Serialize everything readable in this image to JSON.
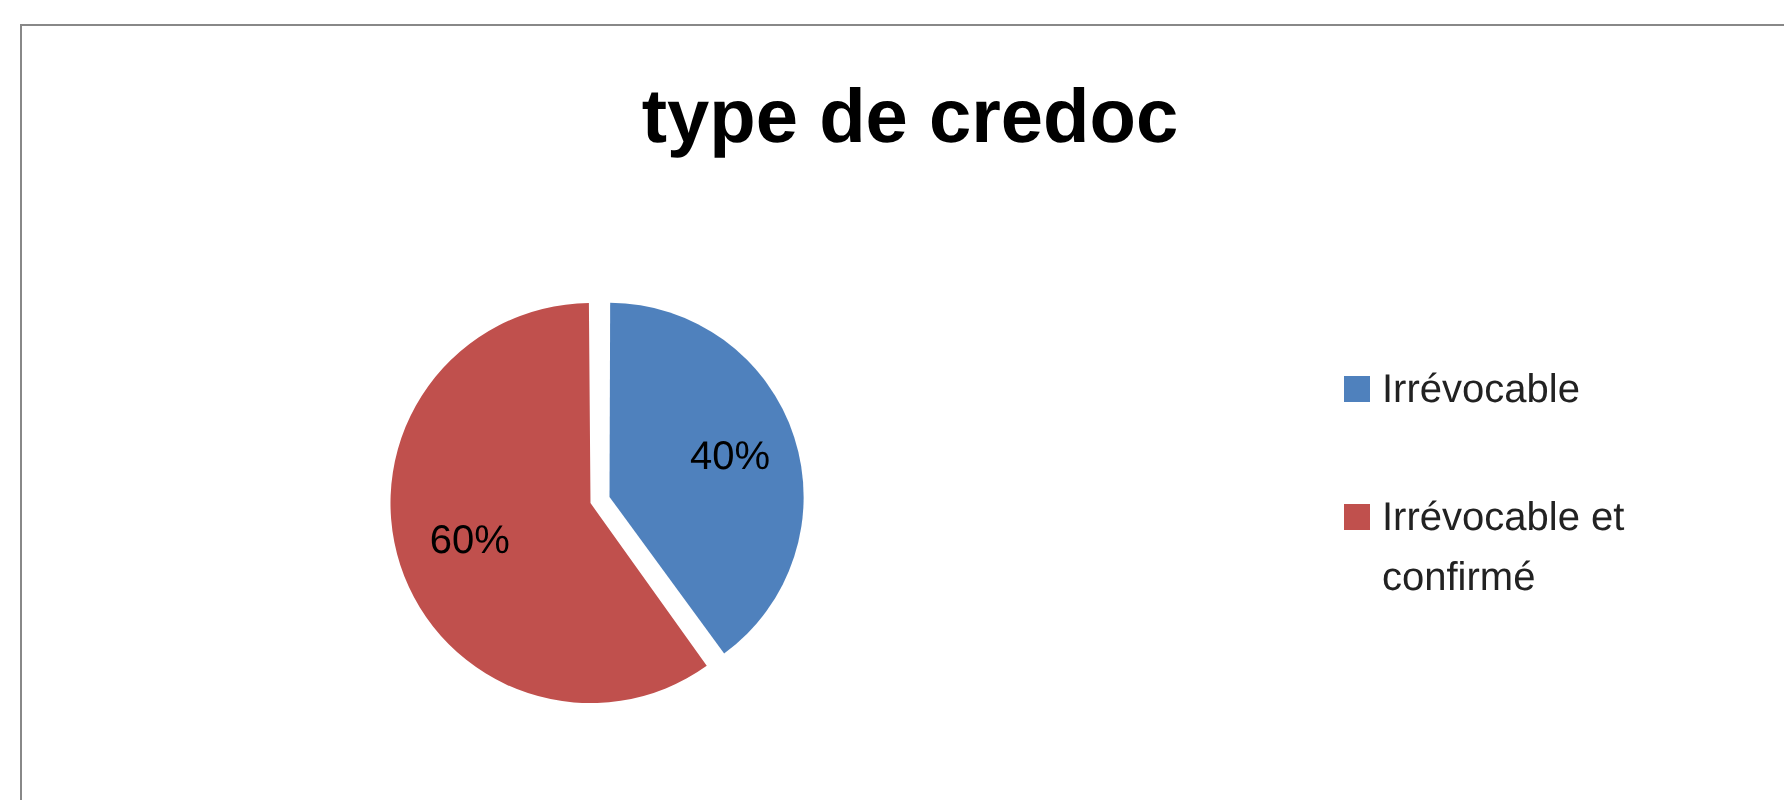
{
  "chart_data": {
    "type": "pie",
    "title": "type de credoc",
    "categories": [
      "Irrévocable",
      "Irrévocable et confirmé"
    ],
    "values": [
      40,
      60
    ],
    "colors": [
      "#4f81bd",
      "#c0504d"
    ],
    "value_labels": [
      "40%",
      "60%"
    ],
    "legend": "right"
  }
}
